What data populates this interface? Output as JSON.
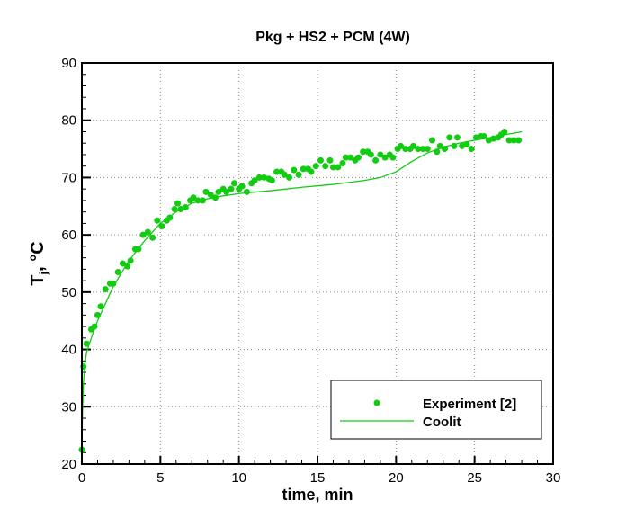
{
  "chart_data": {
    "type": "scatter",
    "title": "Pkg + HS2 +  PCM (4W)",
    "xlabel": "time, min",
    "ylabel_main": "T",
    "ylabel_sub": "j",
    "ylabel_rest": ", °C",
    "xlim": [
      0,
      30
    ],
    "ylim": [
      20,
      90
    ],
    "xticks": [
      0,
      5,
      10,
      15,
      20,
      25,
      30
    ],
    "yticks": [
      20,
      30,
      40,
      50,
      60,
      70,
      80,
      90
    ],
    "grid": true,
    "legend_position": "bottom-right",
    "color": "#11cc11",
    "series": [
      {
        "name": "Experiment [2]",
        "kind": "markers",
        "x": [
          0,
          0.1,
          0.3,
          0.6,
          0.8,
          1.0,
          1.2,
          1.5,
          1.8,
          2.0,
          2.3,
          2.6,
          2.9,
          3.1,
          3.4,
          3.6,
          3.9,
          4.2,
          4.5,
          4.8,
          5.1,
          5.4,
          5.6,
          5.9,
          6.1,
          6.3,
          6.6,
          6.9,
          7.1,
          7.4,
          7.7,
          7.9,
          8.2,
          8.5,
          8.7,
          9.0,
          9.2,
          9.5,
          9.7,
          10.0,
          10.2,
          10.5,
          10.8,
          11.0,
          11.3,
          11.6,
          11.9,
          12.1,
          12.4,
          12.7,
          12.9,
          13.2,
          13.5,
          13.8,
          14.1,
          14.4,
          14.6,
          14.9,
          15.2,
          15.5,
          15.8,
          16.0,
          16.3,
          16.6,
          16.8,
          17.1,
          17.4,
          17.6,
          17.9,
          18.2,
          18.4,
          18.7,
          19.0,
          19.3,
          19.6,
          19.8,
          20.1,
          20.3,
          20.6,
          20.9,
          21.1,
          21.4,
          21.7,
          22.0,
          22.3,
          22.6,
          22.8,
          23.1,
          23.4,
          23.7,
          23.9,
          24.2,
          24.5,
          24.8,
          25.1,
          25.4,
          25.6,
          25.9,
          26.2,
          26.5,
          26.7,
          26.9,
          27.2,
          27.5,
          27.8
        ],
        "y": [
          22.5,
          37,
          41,
          43.5,
          44,
          46,
          47.5,
          50.5,
          51.5,
          51.5,
          53.5,
          55,
          54.5,
          55.5,
          57.5,
          57.5,
          60,
          60.5,
          59.5,
          62.5,
          61.5,
          62.5,
          63,
          64.5,
          65.5,
          64.5,
          64.8,
          66,
          66.5,
          66,
          66,
          67.5,
          67,
          66.5,
          67.5,
          68,
          67.5,
          68,
          69,
          68,
          68.5,
          67.5,
          69,
          69.5,
          70,
          70,
          69.8,
          69.5,
          71,
          71,
          70.5,
          70,
          71.3,
          70.5,
          71.5,
          71.5,
          71,
          72,
          73,
          72,
          73,
          71.8,
          71.8,
          72.5,
          73.5,
          73.5,
          73,
          73.5,
          74.5,
          74.5,
          74,
          73,
          74,
          73.5,
          74,
          73.5,
          75,
          75.5,
          75,
          75,
          75.5,
          75,
          75,
          75,
          76.5,
          74.5,
          75.5,
          75,
          77,
          75.5,
          77,
          75.5,
          75.8,
          75,
          77,
          77.2,
          77.2,
          76.5,
          76.8,
          77,
          77.5,
          78,
          76.5,
          76.5,
          76.5
        ]
      },
      {
        "name": "Coolit",
        "kind": "line",
        "x": [
          0,
          0.05,
          0.1,
          0.2,
          0.3,
          0.6,
          1,
          2,
          3,
          4,
          5,
          6,
          7,
          8,
          9,
          10,
          12,
          14,
          16,
          18,
          19,
          20,
          21,
          22,
          23,
          24,
          25,
          26,
          27,
          28
        ],
        "y": [
          24,
          30,
          34,
          37.5,
          39.5,
          42,
          45,
          51,
          55.5,
          59,
          62,
          64,
          65.5,
          66.3,
          66.8,
          67.2,
          67.7,
          68.3,
          68.8,
          69.5,
          70,
          71,
          72.8,
          74.3,
          75.3,
          76,
          76.5,
          77,
          77.5,
          78
        ]
      }
    ]
  }
}
